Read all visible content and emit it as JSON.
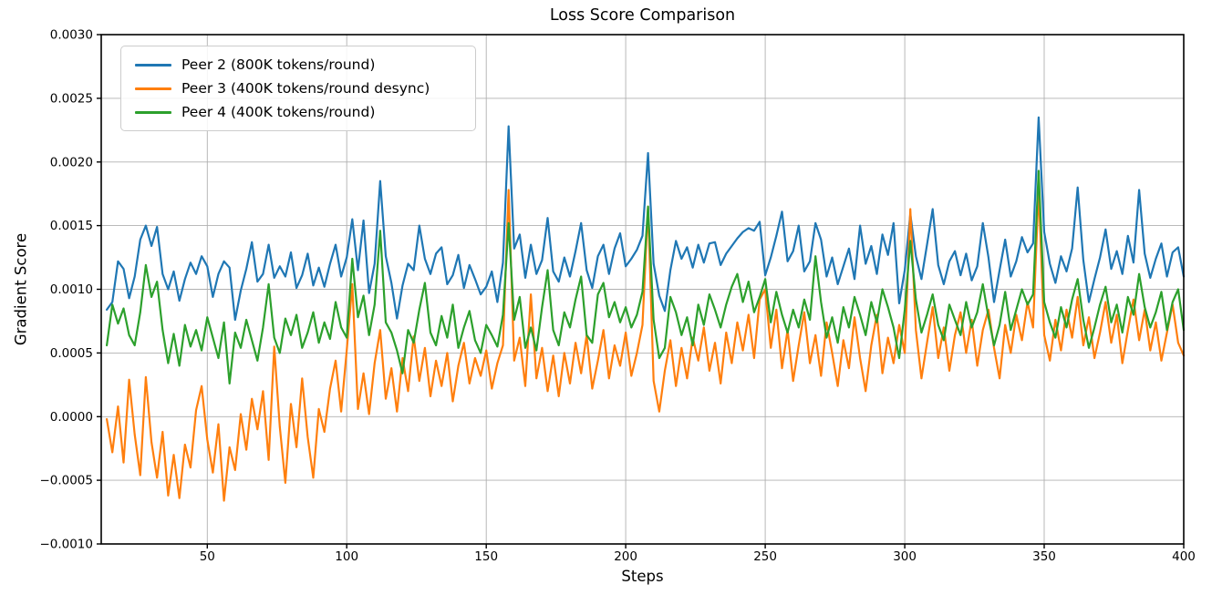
{
  "title": "Loss Score Comparison",
  "axes": {
    "xlabel": "Steps",
    "ylabel": "Gradient Score",
    "x_ticks": [
      50,
      100,
      150,
      200,
      250,
      300,
      350,
      400
    ],
    "y_tick_values": [
      0.003,
      0.0025,
      0.002,
      0.0015,
      0.001,
      0.0005,
      0.0,
      -0.0005,
      -0.001
    ],
    "y_tick_labels": [
      "0.0030",
      "0.0025",
      "0.0020",
      "0.0015",
      "0.0010",
      "0.0005",
      "0.0000",
      "−0.0005",
      "−0.0010"
    ],
    "grid_color": "#b0b0b0",
    "spine_color": "#000000"
  },
  "chart_data": {
    "type": "line",
    "title": "Loss Score Comparison",
    "xlabel": "Steps",
    "ylabel": "Gradient Score",
    "xlim": [
      12,
      400
    ],
    "ylim": [
      -0.001,
      0.003
    ],
    "grid": true,
    "legend_position": "upper left",
    "x_start": 14,
    "x_step": 2,
    "y_unit": 0.0001,
    "series": [
      {
        "name": "Peer 2 (800K tokens/round)",
        "color": "#1f77b4",
        "values": [
          8.4,
          9.0,
          12.2,
          11.6,
          9.3,
          11.0,
          13.9,
          15.0,
          13.4,
          14.9,
          11.2,
          10.0,
          11.4,
          9.1,
          10.8,
          12.1,
          11.2,
          12.6,
          11.8,
          9.4,
          11.2,
          12.2,
          11.7,
          7.6,
          9.9,
          11.6,
          13.7,
          10.6,
          11.2,
          13.5,
          10.9,
          11.8,
          11.0,
          12.9,
          10.1,
          11.1,
          12.8,
          10.3,
          11.7,
          10.2,
          12.0,
          13.5,
          11.0,
          12.5,
          15.5,
          11.5,
          15.4,
          9.7,
          12.0,
          18.5,
          12.6,
          10.5,
          7.7,
          10.3,
          12.0,
          11.5,
          15.0,
          12.4,
          11.2,
          12.8,
          13.3,
          10.4,
          11.1,
          12.7,
          10.1,
          11.9,
          10.8,
          9.6,
          10.2,
          11.4,
          9.0,
          12.1,
          22.8,
          13.2,
          14.3,
          10.9,
          13.5,
          11.2,
          12.3,
          15.6,
          11.4,
          10.6,
          12.5,
          11.0,
          13.0,
          15.2,
          11.5,
          10.1,
          12.6,
          13.5,
          11.2,
          13.2,
          14.4,
          11.8,
          12.4,
          13.1,
          14.2,
          20.7,
          12.0,
          9.5,
          8.3,
          11.5,
          13.8,
          12.4,
          13.3,
          11.7,
          13.5,
          12.1,
          13.6,
          13.7,
          11.9,
          12.8,
          13.4,
          14.0,
          14.5,
          14.8,
          14.6,
          15.3,
          11.1,
          12.5,
          14.2,
          16.1,
          12.2,
          13.0,
          15.0,
          11.4,
          12.2,
          15.2,
          13.9,
          11.0,
          12.5,
          10.4,
          11.8,
          13.2,
          10.8,
          15.0,
          12.0,
          13.4,
          11.2,
          14.3,
          12.7,
          15.2,
          8.9,
          11.5,
          15.9,
          12.6,
          10.8,
          13.5,
          16.3,
          11.9,
          10.4,
          12.2,
          13.0,
          11.1,
          12.8,
          10.7,
          11.8,
          15.2,
          12.5,
          9.0,
          11.5,
          13.9,
          11.0,
          12.2,
          14.1,
          12.9,
          13.6,
          23.5,
          14.5,
          12.0,
          10.5,
          12.6,
          11.4,
          13.2,
          18.0,
          12.3,
          9.0,
          10.8,
          12.5,
          14.7,
          11.6,
          13.0,
          11.2,
          14.2,
          12.1,
          17.8,
          12.8,
          10.9,
          12.4,
          13.6,
          11.0,
          12.9,
          13.3,
          11.0
        ]
      },
      {
        "name": "Peer 3 (400K tokens/round desync)",
        "color": "#ff7f0e",
        "values": [
          -0.2,
          -2.8,
          0.8,
          -3.6,
          2.9,
          -1.4,
          -4.6,
          3.1,
          -2.0,
          -4.8,
          -1.2,
          -6.2,
          -3.0,
          -6.4,
          -2.2,
          -4.0,
          0.5,
          2.4,
          -1.8,
          -4.4,
          -0.6,
          -6.6,
          -2.4,
          -4.2,
          0.2,
          -2.6,
          1.4,
          -1.0,
          2.0,
          -3.4,
          5.5,
          -0.8,
          -5.2,
          1.0,
          -2.4,
          3.0,
          -1.6,
          -4.8,
          0.6,
          -1.2,
          2.2,
          4.4,
          0.4,
          5.2,
          10.4,
          0.6,
          3.4,
          0.2,
          4.2,
          6.8,
          1.4,
          3.8,
          0.4,
          4.6,
          2.0,
          6.3,
          2.8,
          5.4,
          1.6,
          4.4,
          2.4,
          5.0,
          1.2,
          4.0,
          5.8,
          2.6,
          4.6,
          3.2,
          5.2,
          2.2,
          4.2,
          5.6,
          17.8,
          4.4,
          6.2,
          2.4,
          9.6,
          3.0,
          5.4,
          2.0,
          4.8,
          1.6,
          5.0,
          2.6,
          5.8,
          3.4,
          6.4,
          2.2,
          4.4,
          6.8,
          3.0,
          5.6,
          4.0,
          6.6,
          3.2,
          5.0,
          7.2,
          16.5,
          2.8,
          0.4,
          3.6,
          6.0,
          2.4,
          5.4,
          3.0,
          6.2,
          4.4,
          7.0,
          3.6,
          5.8,
          2.6,
          6.6,
          4.2,
          7.4,
          5.2,
          8.0,
          4.6,
          9.2,
          10.0,
          5.4,
          8.4,
          3.8,
          6.8,
          2.8,
          5.6,
          8.2,
          4.2,
          6.4,
          3.2,
          7.4,
          5.0,
          2.4,
          6.0,
          3.8,
          7.8,
          4.6,
          2.0,
          5.6,
          8.0,
          3.4,
          6.2,
          4.2,
          7.2,
          5.0,
          16.3,
          6.8,
          3.0,
          5.8,
          8.6,
          4.6,
          7.0,
          3.6,
          6.4,
          8.2,
          5.0,
          7.6,
          4.0,
          6.8,
          8.4,
          5.4,
          3.0,
          7.2,
          5.0,
          8.0,
          6.0,
          9.0,
          7.0,
          17.9,
          6.4,
          4.4,
          7.6,
          5.2,
          8.4,
          6.2,
          9.4,
          5.6,
          7.8,
          4.6,
          6.6,
          9.0,
          5.8,
          8.0,
          4.2,
          6.8,
          9.2,
          6.0,
          8.4,
          5.2,
          7.4,
          4.4,
          6.6,
          8.8,
          5.8,
          4.8
        ]
      },
      {
        "name": "Peer 4 (400K tokens/round)",
        "color": "#2ca02c",
        "values": [
          5.6,
          8.8,
          7.3,
          8.5,
          6.4,
          5.6,
          8.2,
          11.9,
          9.4,
          10.6,
          6.8,
          4.2,
          6.5,
          4.0,
          7.2,
          5.5,
          6.8,
          5.2,
          7.8,
          6.2,
          4.6,
          7.4,
          2.6,
          6.6,
          5.4,
          7.6,
          6.0,
          4.4,
          7.0,
          10.4,
          6.2,
          5.0,
          7.7,
          6.4,
          8.0,
          5.4,
          6.6,
          8.2,
          5.8,
          7.4,
          6.1,
          9.0,
          7.0,
          6.2,
          12.4,
          7.8,
          9.5,
          6.4,
          8.8,
          14.6,
          7.4,
          6.6,
          5.2,
          3.4,
          6.8,
          5.8,
          8.4,
          10.5,
          6.6,
          5.6,
          7.9,
          6.2,
          8.8,
          5.4,
          7.0,
          8.3,
          6.0,
          5.0,
          7.2,
          6.4,
          5.5,
          8.0,
          15.2,
          7.6,
          9.4,
          5.4,
          7.0,
          5.2,
          8.6,
          11.5,
          6.8,
          5.6,
          8.2,
          7.0,
          9.2,
          11.0,
          6.4,
          5.8,
          9.6,
          10.5,
          7.8,
          9.0,
          7.4,
          8.6,
          7.0,
          8.0,
          9.8,
          16.5,
          7.6,
          4.6,
          5.4,
          9.4,
          8.2,
          6.4,
          7.8,
          5.6,
          8.8,
          7.2,
          9.6,
          8.4,
          7.0,
          8.8,
          10.2,
          11.2,
          9.0,
          10.6,
          8.2,
          9.4,
          10.8,
          7.4,
          9.8,
          8.0,
          6.6,
          8.4,
          7.0,
          9.2,
          7.6,
          12.6,
          9.0,
          6.2,
          7.8,
          5.8,
          8.6,
          7.0,
          9.4,
          8.0,
          6.4,
          9.0,
          7.4,
          10.0,
          8.6,
          7.0,
          4.6,
          8.4,
          13.8,
          9.2,
          6.6,
          8.0,
          9.6,
          7.2,
          6.0,
          8.8,
          7.6,
          6.4,
          9.0,
          7.0,
          8.2,
          10.4,
          7.8,
          5.6,
          7.2,
          9.8,
          6.8,
          8.4,
          10.0,
          8.8,
          9.6,
          19.3,
          9.0,
          7.4,
          6.2,
          8.6,
          7.0,
          9.2,
          10.8,
          7.6,
          5.4,
          7.0,
          8.8,
          10.2,
          7.4,
          8.8,
          6.6,
          9.4,
          8.0,
          11.2,
          8.6,
          7.0,
          8.2,
          9.8,
          6.8,
          9.0,
          10.0,
          6.8
        ]
      }
    ]
  }
}
